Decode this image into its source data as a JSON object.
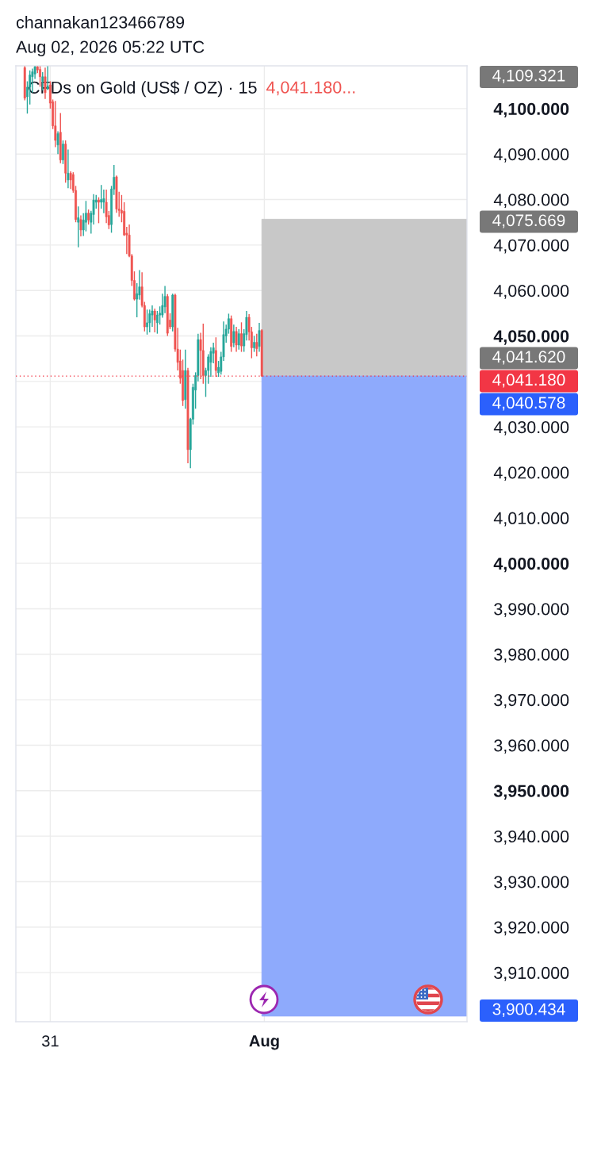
{
  "chart_data": {
    "type": "candlestick",
    "title": "CFDs on Gold (US$ / OZ) · 15",
    "subtitle": "channakan123466789\nAug 02, 2026 05:22 UTC",
    "categories": [
      null,
      null,
      null,
      null,
      null,
      null,
      null,
      null,
      null,
      null,
      null,
      null,
      null,
      "31",
      null,
      null,
      null,
      null,
      null,
      null,
      null,
      null,
      null,
      null,
      null,
      null,
      null,
      null,
      null,
      null,
      null,
      null,
      null,
      null,
      null,
      null,
      null,
      null,
      null,
      null,
      null,
      null,
      null,
      null,
      null,
      null,
      null,
      null,
      null,
      null,
      null,
      null,
      null,
      null,
      null,
      null,
      null,
      null,
      null,
      null,
      null,
      null,
      null,
      null,
      null,
      null,
      null,
      null,
      null,
      null,
      null,
      null,
      null,
      null,
      null,
      null,
      null,
      null,
      null,
      null,
      null,
      null,
      null,
      null,
      null,
      null,
      null,
      null,
      null,
      null,
      null,
      null,
      null,
      null,
      null,
      null,
      null,
      "Aug",
      null,
      null,
      null,
      null,
      null,
      null,
      null,
      null,
      null,
      null,
      null,
      null,
      null,
      null,
      null,
      null,
      null,
      null,
      null,
      null,
      null,
      null,
      null,
      null,
      null,
      null,
      null,
      null,
      null,
      null,
      null,
      null,
      null,
      null,
      null,
      null,
      null,
      null,
      null,
      null,
      null,
      null,
      null,
      null,
      null,
      null,
      null,
      null,
      null,
      null,
      null,
      null,
      null,
      null,
      null,
      null,
      null,
      null,
      null,
      null,
      null,
      null,
      null,
      null,
      null,
      null,
      null,
      null,
      null,
      null,
      null,
      null,
      null,
      null,
      null,
      null,
      null,
      null,
      null
    ],
    "ohlc": [
      null,
      null,
      null,
      [
        4109.0,
        4109.3,
        4101.8,
        4102.3
      ],
      [
        4102.6,
        4106.0,
        4098.9,
        4104.7
      ],
      [
        4104.7,
        4108.4,
        4100.9,
        4107.4
      ],
      [
        4107.0,
        4108.8,
        4103.5,
        4108.1
      ],
      [
        4107.6,
        4109.3,
        4106.5,
        4109.2
      ],
      [
        4109.2,
        4109.3,
        4107.8,
        4108.5
      ],
      [
        4108.6,
        4109.3,
        4104.8,
        4107.0
      ],
      [
        4106.0,
        4108.0,
        4104.0,
        4107.0
      ],
      [
        4107.0,
        4109.0,
        4102.1,
        4103.5
      ],
      [
        4104.3,
        4109.3,
        4104.1,
        4105.0
      ],
      [
        4105.2,
        4106.0,
        4100.0,
        4101.2
      ],
      [
        4101.5,
        4102.0,
        4095.5,
        4096.2
      ],
      [
        4096.2,
        4101.7,
        4091.5,
        4093.0
      ],
      [
        4092.0,
        4095.0,
        4090.0,
        4094.5
      ],
      [
        4094.8,
        4099.0,
        4088.0,
        4088.7
      ],
      [
        4088.7,
        4093.0,
        4087.8,
        4092.2
      ],
      [
        4092.2,
        4093.0,
        4083.7,
        4085.8
      ],
      [
        4084.3,
        4091.0,
        4082.5,
        4085.8
      ],
      [
        4085.8,
        4086.2,
        4082.3,
        4084.3
      ],
      [
        4085.5,
        4086.0,
        4081.5,
        4082.0
      ],
      [
        4082.0,
        4083.0,
        4075.0,
        4075.6
      ],
      [
        4075.0,
        4078.5,
        4069.5,
        4076.0
      ],
      [
        4075.6,
        4076.5,
        4071.9,
        4073.3
      ],
      [
        4073.3,
        4077.0,
        4072.0,
        4075.5
      ],
      [
        4075.0,
        4079.7,
        4073.0,
        4077.0
      ],
      [
        4077.0,
        4077.8,
        4074.5,
        4075.5
      ],
      [
        4075.0,
        4077.5,
        4072.5,
        4077.0
      ],
      [
        4076.7,
        4081.2,
        4074.5,
        4079.9
      ],
      [
        4079.4,
        4081.0,
        4078.0,
        4079.9
      ],
      [
        4079.9,
        4080.5,
        4074.8,
        4079.4
      ],
      [
        4079.4,
        4083.2,
        4078.0,
        4080.0
      ],
      [
        4079.4,
        4082.2,
        4077.0,
        4080.2
      ],
      [
        4079.4,
        4082.2,
        4074.8,
        4076.2
      ],
      [
        4076.5,
        4077.5,
        4073.5,
        4074.4
      ],
      [
        4074.5,
        4083.0,
        4072.7,
        4082.3
      ],
      [
        4082.3,
        4087.6,
        4081.0,
        4084.9
      ],
      [
        4085.0,
        4085.3,
        4077.1,
        4077.9
      ],
      [
        4077.9,
        4081.7,
        4076.2,
        4077.6
      ],
      [
        4077.6,
        4081.0,
        4075.0,
        4077.0
      ],
      [
        4077.4,
        4079.4,
        4072.0,
        4072.2
      ],
      [
        4072.6,
        4074.0,
        4068.0,
        4072.2
      ],
      [
        4072.2,
        4074.5,
        4067.3,
        4067.6
      ],
      [
        4067.6,
        4068.0,
        4061.0,
        4062.2
      ],
      [
        4062.2,
        4064.2,
        4057.8,
        4058.1
      ],
      [
        4058.1,
        4061.6,
        4054.1,
        4059.3
      ],
      [
        4059.0,
        4064.5,
        4058.0,
        4060.8
      ],
      [
        4060.8,
        4064.0,
        4056.3,
        4056.7
      ],
      [
        4056.7,
        4057.5,
        4051.0,
        4052.0
      ],
      [
        4052.0,
        4055.8,
        4050.3,
        4052.9
      ],
      [
        4052.9,
        4055.8,
        4050.8,
        4054.9
      ],
      [
        4054.6,
        4056.7,
        4052.0,
        4055.5
      ],
      [
        4055.5,
        4056.0,
        4050.8,
        4053.5
      ],
      [
        4052.9,
        4055.5,
        4050.5,
        4054.6
      ],
      [
        4054.6,
        4056.5,
        4052.5,
        4055.0
      ],
      [
        4054.6,
        4059.3,
        4054.0,
        4056.7
      ],
      [
        4056.4,
        4061.0,
        4055.0,
        4058.7
      ],
      [
        4058.7,
        4059.2,
        4050.0,
        4050.6
      ],
      [
        4053.5,
        4055.0,
        4051.5,
        4052.0
      ],
      [
        4052.0,
        4059.3,
        4051.0,
        4059.0
      ],
      [
        4059.0,
        4059.3,
        4046.5,
        4047.1
      ],
      [
        4047.1,
        4051.8,
        4042.4,
        4044.2
      ],
      [
        4044.5,
        4047.0,
        4039.5,
        4040.7
      ],
      [
        4042.4,
        4044.8,
        4034.6,
        4035.8
      ],
      [
        4036.0,
        4047.0,
        4034.0,
        4042.4
      ],
      [
        4042.4,
        4043.0,
        4022.0,
        4025.0
      ],
      [
        4025.0,
        4032.0,
        4020.9,
        4031.7
      ],
      [
        4031.7,
        4039.5,
        4030.5,
        4038.7
      ],
      [
        4038.1,
        4042.0,
        4034.0,
        4041.3
      ],
      [
        4041.3,
        4050.5,
        4040.0,
        4049.2
      ],
      [
        4049.2,
        4050.7,
        4040.5,
        4046.8
      ],
      [
        4046.8,
        4052.7,
        4039.5,
        4041.3
      ],
      [
        4041.3,
        4043.0,
        4036.6,
        4042.4
      ],
      [
        4042.4,
        4046.0,
        4039.5,
        4045.4
      ],
      [
        4044.2,
        4047.5,
        4041.0,
        4046.6
      ],
      [
        4046.2,
        4048.5,
        4044.0,
        4047.4
      ],
      [
        4046.8,
        4049.7,
        4041.0,
        4042.4
      ],
      [
        4041.9,
        4044.5,
        4041.0,
        4043.1
      ],
      [
        4042.2,
        4046.5,
        4041.5,
        4045.4
      ],
      [
        4045.4,
        4053.2,
        4044.5,
        4050.3
      ],
      [
        4050.0,
        4052.5,
        4048.5,
        4051.5
      ],
      [
        4051.5,
        4054.9,
        4050.5,
        4053.8
      ],
      [
        4053.8,
        4054.5,
        4046.5,
        4047.7
      ],
      [
        4048.5,
        4052.5,
        4047.5,
        4051.0
      ],
      [
        4051.0,
        4052.0,
        4046.5,
        4048.0
      ],
      [
        4048.0,
        4051.5,
        4047.0,
        4050.5
      ],
      [
        4050.5,
        4053.0,
        4046.5,
        4047.8
      ],
      [
        4047.8,
        4051.5,
        4046.5,
        4050.5
      ],
      [
        4050.3,
        4055.5,
        4049.0,
        4054.1
      ],
      [
        4054.1,
        4054.8,
        4049.0,
        4050.9
      ],
      [
        4050.9,
        4052.0,
        4045.1,
        4047.4
      ],
      [
        4047.4,
        4050.0,
        4046.5,
        4048.6
      ],
      [
        4048.6,
        4050.5,
        4045.5,
        4047.2
      ],
      [
        4047.7,
        4052.9,
        4046.5,
        4051.2
      ],
      [
        4051.2,
        4051.5,
        4041.0,
        4041.18
      ],
      null,
      null,
      null,
      null,
      null,
      null,
      null,
      null,
      null,
      null,
      null,
      null,
      null,
      null,
      null,
      null,
      null,
      null,
      null,
      null,
      null,
      null,
      null,
      null,
      null,
      null,
      null,
      null,
      null,
      null,
      null,
      null,
      null,
      null,
      null,
      null,
      null,
      null,
      null,
      null,
      null,
      null,
      null,
      null,
      null,
      null,
      null,
      null,
      null,
      null,
      null,
      null,
      null,
      null,
      null,
      null,
      null,
      null,
      null,
      null,
      null,
      null,
      null,
      null,
      null,
      null,
      null,
      null,
      null,
      null,
      null,
      null,
      null,
      null,
      null,
      null,
      null,
      null,
      null,
      null
    ],
    "colors": [
      null,
      null,
      null,
      "#ef5350",
      "#26a69a",
      "#26a69a",
      "#26a69a",
      "#26a69a",
      "#ef5350",
      "#ef5350",
      "#26a69a",
      "#ef5350",
      "#26a69a",
      "#ef5350",
      "#ef5350",
      "#ef5350",
      "#26a69a",
      "#ef5350",
      "#26a69a",
      "#ef5350",
      "#26a69a",
      "#ef5350",
      "#ef5350",
      "#ef5350",
      "#26a69a",
      "#ef5350",
      "#26a69a",
      "#26a69a",
      "#ef5350",
      "#26a69a",
      "#26a69a",
      "#26a69a",
      "#ef5350",
      "#26a69a",
      "#26a69a",
      "#ef5350",
      "#ef5350",
      "#26a69a",
      "#26a69a",
      "#ef5350",
      "#ef5350",
      "#ef5350",
      "#ef5350",
      "#ef5350",
      "#ef5350",
      "#ef5350",
      "#ef5350",
      "#26a69a",
      "#26a69a",
      "#ef5350",
      "#ef5350",
      "#26a69a",
      "#26a69a",
      "#26a69a",
      "#ef5350",
      "#26a69a",
      "#26a69a",
      "#26a69a",
      "#26a69a",
      "#ef5350",
      "#ef5350",
      "#26a69a",
      "#ef5350",
      "#ef5350",
      "#ef5350",
      "#ef5350",
      "#26a69a",
      "#ef5350",
      "#26a69a",
      "#26a69a",
      "#26a69a",
      "#26a69a",
      "#ef5350",
      "#ef5350",
      "#26a69a",
      "#26a69a",
      "#26a69a",
      "#26a69a",
      "#ef5350",
      "#26a69a",
      "#26a69a",
      "#26a69a",
      "#26a69a",
      "#26a69a",
      "#ef5350",
      "#26a69a",
      "#ef5350",
      "#26a69a",
      "#ef5350",
      "#26a69a",
      "#26a69a",
      "#ef5350",
      "#ef5350",
      "#26a69a",
      "#ef5350",
      "#26a69a",
      "#ef5350",
      null,
      null,
      null,
      null,
      null,
      null,
      null,
      null,
      null,
      null,
      null,
      null,
      null,
      null,
      null,
      null,
      null,
      null,
      null,
      null,
      null,
      null,
      null,
      null,
      null,
      null,
      null,
      null,
      null,
      null,
      null,
      null,
      null,
      null,
      null,
      null,
      null,
      null,
      null,
      null,
      null,
      null,
      null,
      null,
      null,
      null,
      null,
      null,
      null,
      null,
      null,
      null,
      null,
      null,
      null,
      null,
      null,
      null,
      null,
      null,
      null,
      null,
      null,
      null,
      null,
      null,
      null,
      null,
      null,
      null,
      null,
      null,
      null,
      null,
      null,
      null,
      null,
      null,
      null,
      null
    ],
    "ylim": [
      3899.2,
      4109.4
    ],
    "yticks": [
      {
        "value": 3910,
        "label": "3,910.000"
      },
      {
        "value": 3920,
        "label": "3,920.000"
      },
      {
        "value": 3930,
        "label": "3,930.000"
      },
      {
        "value": 3940,
        "label": "3,940.000"
      },
      {
        "value": 3950,
        "label": "3,950.000"
      },
      {
        "value": 3960,
        "label": "3,960.000"
      },
      {
        "value": 3970,
        "label": "3,970.000"
      },
      {
        "value": 3980,
        "label": "3,980.000"
      },
      {
        "value": 3990,
        "label": "3,990.000"
      },
      {
        "value": 4000,
        "label": "4,000.000"
      },
      {
        "value": 4010,
        "label": "4,010.000"
      },
      {
        "value": 4020,
        "label": "4,020.000"
      },
      {
        "value": 4030,
        "label": "4,030.000"
      },
      {
        "value": 4040,
        "label": null
      },
      {
        "value": 4050,
        "label": "4,050.000"
      },
      {
        "value": 4060,
        "label": "4,060.000"
      },
      {
        "value": 4070,
        "label": "4,070.000"
      },
      {
        "value": 4080,
        "label": "4,080.000"
      },
      {
        "value": 4090,
        "label": "4,090.000"
      },
      {
        "value": 4100,
        "label": "4,100.000"
      }
    ],
    "grid": true,
    "ref_lines": [
      {
        "axis": "y",
        "value": 4041.18,
        "label": "4,041.180",
        "color": "#f23645",
        "line_style": "dotted"
      }
    ],
    "bands": [
      {
        "axis": "y",
        "from": 4041.18,
        "to": 4041.62,
        "color": "#c8c8c8",
        "label": "4,041.620"
      },
      {
        "axis": "y",
        "from": 4041.62,
        "to": 4075.669,
        "color": "#c8c8c8",
        "label": "4,075.669"
      },
      {
        "axis": "y",
        "from": 4041.18,
        "to": 4040.578,
        "color": "#8eaafc",
        "label": "4,040.578"
      },
      {
        "axis": "y",
        "from": 4040.578,
        "to": 3900.434,
        "color": "#8eaafc",
        "label": "3,900.434"
      }
    ],
    "annotations": [
      "4,041.180...",
      "4,109.321"
    ]
  }
}
